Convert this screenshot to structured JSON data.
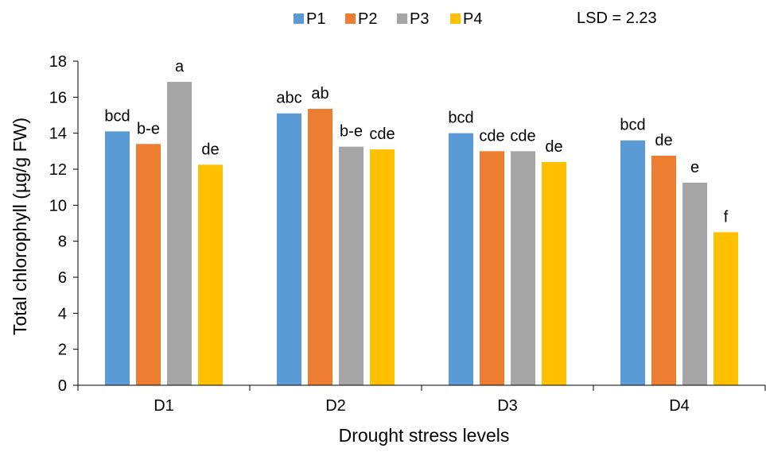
{
  "chart_data": {
    "type": "bar",
    "categories": [
      "D1",
      "D2",
      "D3",
      "D4"
    ],
    "series": [
      {
        "name": "P1",
        "color": "#5B9BD5",
        "values": [
          14.1,
          15.1,
          14.0,
          13.6
        ],
        "labels": [
          "bcd",
          "abc",
          "bcd",
          "bcd"
        ]
      },
      {
        "name": "P2",
        "color": "#ED7D31",
        "values": [
          13.4,
          15.35,
          13.0,
          12.75
        ],
        "labels": [
          "b-e",
          "ab",
          "cde",
          "de"
        ]
      },
      {
        "name": "P3",
        "color": "#A5A5A5",
        "values": [
          16.85,
          13.25,
          13.0,
          11.25
        ],
        "labels": [
          "a",
          "b-e",
          "cde",
          "e"
        ]
      },
      {
        "name": "P4",
        "color": "#FFC000",
        "values": [
          12.25,
          13.1,
          12.4,
          8.5
        ],
        "labels": [
          "de",
          "cde",
          "de",
          "f"
        ]
      }
    ],
    "xlabel": "Drought stress levels",
    "ylabel": "Total chlorophyll (µg/g FW)",
    "ylim": [
      0,
      18
    ],
    "yticks": [
      0,
      2,
      4,
      6,
      8,
      10,
      12,
      14,
      16,
      18
    ],
    "grid": false,
    "legend_position": "top",
    "annotation": "LSD = 2.23"
  }
}
